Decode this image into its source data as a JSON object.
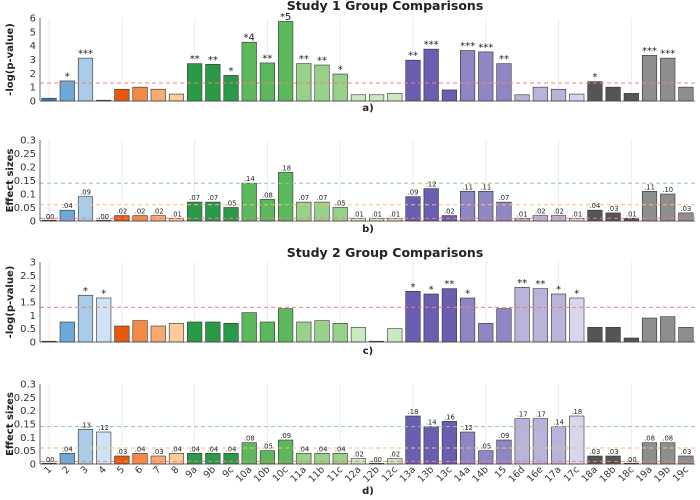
{
  "categories": [
    "1",
    "2",
    "3",
    "4",
    "5",
    "6",
    "7",
    "8",
    "9a",
    "9b",
    "9c",
    "10a",
    "10b",
    "10c",
    "11a",
    "11b",
    "11c",
    "12a",
    "12b",
    "12c",
    "13a",
    "13b",
    "13c",
    "14a",
    "14b",
    "15",
    "16d",
    "16e",
    "17a",
    "17c",
    "18a",
    "18b",
    "18c",
    "19a",
    "19b",
    "19c"
  ],
  "colors": [
    "#3b7fc4",
    "#6aa9d8",
    "#a9cce8",
    "#cfe3f3",
    "#e8590c",
    "#f28a45",
    "#f7ab72",
    "#fbcb9c",
    "#2b9a48",
    "#2b9a48",
    "#2b9a48",
    "#5cb85c",
    "#5cb85c",
    "#5cb85c",
    "#98d18a",
    "#98d18a",
    "#98d18a",
    "#cbe9c0",
    "#cbe9c0",
    "#cbe9c0",
    "#6a5eb0",
    "#6a5eb0",
    "#6a5eb0",
    "#8f86c4",
    "#8f86c4",
    "#8f86c4",
    "#b9b2d9",
    "#b9b2d9",
    "#b9b2d9",
    "#d9d5ec",
    "#555555",
    "#555555",
    "#555555",
    "#8e8e8e",
    "#8e8e8e",
    "#8e8e8e"
  ],
  "chart_data": [
    {
      "type": "bar",
      "id": "a",
      "section_title": "Study 1 Group Comparisons",
      "ylabel": "-log(p-value)",
      "ylim": [
        0,
        6
      ],
      "yticks": [
        "0",
        "1",
        "2",
        "3",
        "4",
        "5",
        "6"
      ],
      "subplot_label": "a)",
      "threshold_lines": [
        {
          "value": 1.3,
          "color": "red"
        }
      ],
      "values": [
        0.2,
        1.45,
        3.1,
        0.05,
        0.85,
        1.0,
        0.85,
        0.5,
        2.7,
        2.65,
        1.85,
        4.25,
        2.75,
        5.75,
        2.7,
        2.6,
        1.95,
        0.45,
        0.45,
        0.55,
        2.95,
        3.75,
        0.8,
        3.65,
        3.55,
        2.7,
        0.45,
        1.0,
        0.85,
        0.5,
        1.4,
        1.0,
        0.55,
        3.3,
        3.1,
        1.0
      ],
      "annotations": [
        "",
        "*",
        "***",
        "",
        "",
        "",
        "",
        "",
        "**",
        "**",
        "*",
        "*4",
        "**",
        "*5",
        "**",
        "**",
        "*",
        "",
        "",
        "",
        "**",
        "***",
        "",
        "***",
        "***",
        "**",
        "",
        "",
        "",
        "",
        "*",
        "",
        "",
        "***",
        "***",
        ""
      ]
    },
    {
      "type": "bar",
      "id": "b",
      "ylabel": "Effect sizes",
      "ylim": [
        0,
        0.3
      ],
      "yticks": [
        "0",
        "0.05",
        "0.1",
        "0.15",
        "0.2",
        "0.25",
        "0.3"
      ],
      "subplot_label": "b)",
      "threshold_lines": [
        {
          "value": 0.01,
          "color": "red"
        },
        {
          "value": 0.06,
          "color": "orange"
        },
        {
          "value": 0.14,
          "color": "green"
        }
      ],
      "values": [
        0.0,
        0.04,
        0.09,
        0.0,
        0.02,
        0.02,
        0.02,
        0.01,
        0.07,
        0.07,
        0.05,
        0.14,
        0.08,
        0.18,
        0.07,
        0.07,
        0.05,
        0.01,
        0.01,
        0.01,
        0.09,
        0.12,
        0.02,
        0.11,
        0.11,
        0.07,
        0.01,
        0.02,
        0.02,
        0.01,
        0.04,
        0.03,
        0.01,
        0.11,
        0.1,
        0.03
      ],
      "annotations": [
        ".00",
        ".04",
        ".09",
        ".00",
        ".02",
        ".02",
        ".02",
        ".01",
        ".07",
        ".07",
        ".05",
        ".14",
        ".08",
        ".18",
        ".07",
        ".07",
        ".05",
        ".01",
        ".01",
        ".01",
        ".09",
        ".12",
        ".02",
        ".11",
        ".11",
        ".07",
        ".01",
        ".02",
        ".02",
        ".01",
        ".04",
        ".03",
        ".01",
        ".11",
        ".10",
        ".03"
      ]
    },
    {
      "type": "bar",
      "id": "c",
      "section_title": "Study 2 Group Comparisons",
      "ylabel": "-log(p-value)",
      "ylim": [
        0,
        3
      ],
      "yticks": [
        "0",
        "0.5",
        "1",
        "1.5",
        "2",
        "2.5",
        "3"
      ],
      "subplot_label": "c)",
      "threshold_lines": [
        {
          "value": 1.3,
          "color": "red"
        }
      ],
      "values": [
        0.02,
        0.75,
        1.75,
        1.65,
        0.6,
        0.8,
        0.6,
        0.7,
        0.75,
        0.75,
        0.7,
        1.1,
        0.75,
        1.25,
        0.75,
        0.8,
        0.7,
        0.55,
        0.02,
        0.5,
        1.9,
        1.8,
        2.0,
        1.65,
        0.7,
        1.25,
        2.05,
        2.0,
        1.8,
        1.65,
        0.55,
        0.55,
        0.15,
        0.9,
        0.95,
        0.55
      ],
      "annotations": [
        "",
        "",
        "*",
        "*",
        "",
        "",
        "",
        "",
        "",
        "",
        "",
        "",
        "",
        "",
        "",
        "",
        "",
        "",
        "",
        "",
        "*",
        "*",
        "**",
        "*",
        "",
        "",
        "**",
        "**",
        "*",
        "*",
        "",
        "",
        "",
        "",
        "",
        ""
      ]
    },
    {
      "type": "bar",
      "id": "d",
      "ylabel": "Effect sizes",
      "ylim": [
        0,
        0.3
      ],
      "yticks": [
        "0",
        "0.05",
        "0.1",
        "0.15",
        "0.2",
        "0.25",
        "0.3"
      ],
      "subplot_label": "d)",
      "threshold_lines": [
        {
          "value": 0.01,
          "color": "red"
        },
        {
          "value": 0.06,
          "color": "orange"
        },
        {
          "value": 0.14,
          "color": "green"
        }
      ],
      "values": [
        0.0,
        0.04,
        0.13,
        0.12,
        0.03,
        0.04,
        0.03,
        0.04,
        0.04,
        0.04,
        0.04,
        0.08,
        0.05,
        0.09,
        0.04,
        0.04,
        0.04,
        0.02,
        0.0,
        0.02,
        0.18,
        0.14,
        0.16,
        0.12,
        0.05,
        0.09,
        0.17,
        0.17,
        0.14,
        0.18,
        0.03,
        0.03,
        0.0,
        0.08,
        0.08,
        0.03
      ],
      "annotations": [
        ".00",
        ".04",
        ".13",
        ".12",
        ".03",
        ".04",
        ".03",
        ".04",
        ".04",
        ".04",
        ".04",
        ".08",
        ".05",
        ".09",
        ".04",
        ".04",
        ".04",
        ".02",
        ".00",
        ".02",
        ".18",
        ".14",
        ".16",
        ".12",
        ".05",
        ".09",
        ".17",
        ".17",
        ".14",
        ".18",
        ".03",
        ".03",
        ".00",
        ".08",
        ".08",
        ".03"
      ]
    }
  ]
}
